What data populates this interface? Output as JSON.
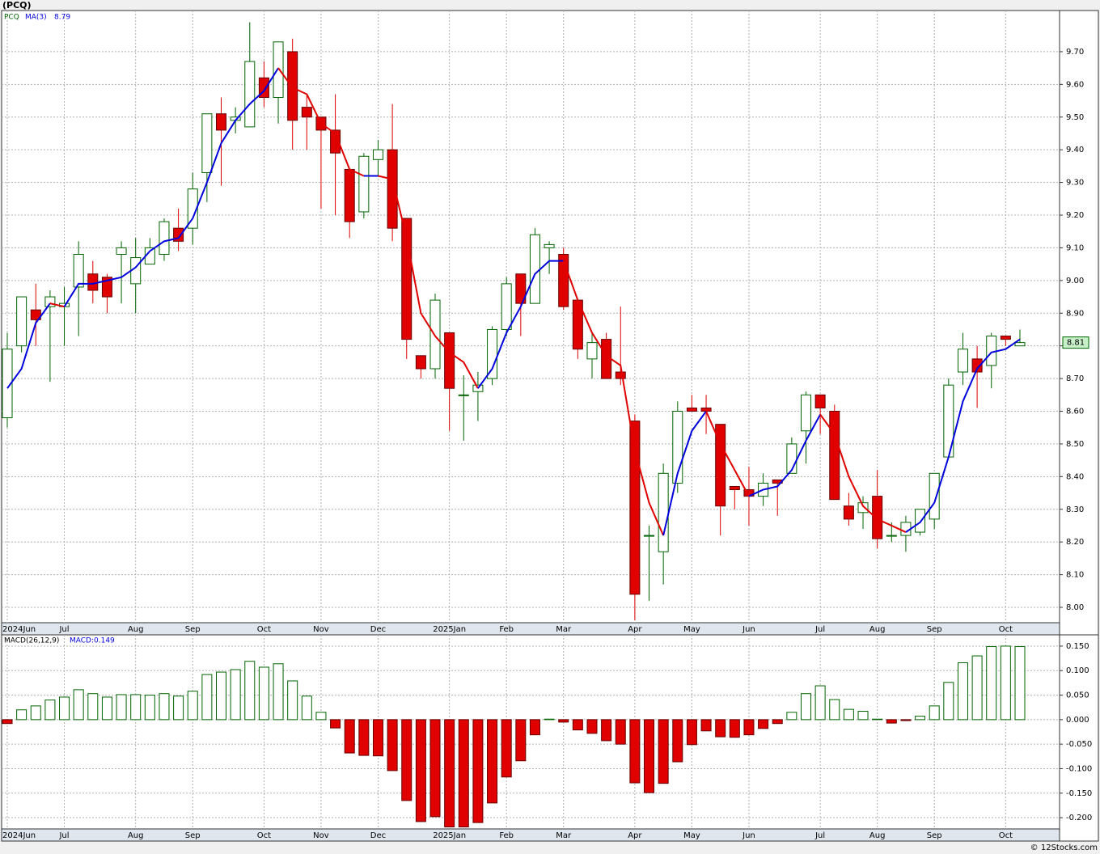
{
  "chart_data": [
    {
      "type": "candlestick",
      "title": "(PCQ)",
      "categories": [
        "2024Jun",
        null,
        null,
        null,
        "Jul",
        null,
        null,
        null,
        null,
        "Aug",
        null,
        null,
        null,
        "Sep",
        null,
        null,
        null,
        null,
        "Oct",
        null,
        null,
        null,
        "Nov",
        null,
        null,
        null,
        "Dec",
        null,
        null,
        null,
        null,
        "2025Jan",
        null,
        null,
        null,
        "Feb",
        null,
        null,
        null,
        "Mar",
        null,
        null,
        null,
        null,
        "Apr",
        null,
        null,
        null,
        "May",
        null,
        null,
        null,
        "Jun",
        null,
        null,
        null,
        null,
        "Jul",
        null,
        null,
        null,
        "Aug",
        null,
        null,
        null,
        "Sep",
        null,
        null,
        null,
        null,
        "Oct",
        null
      ],
      "series": [
        {
          "name": "PCQ",
          "up_color": "#006400",
          "down_color": "#e00000",
          "open": [
            8.58,
            8.8,
            8.91,
            8.92,
            8.92,
            8.98,
            9.02,
            9.01,
            9.08,
            8.99,
            9.05,
            9.08,
            9.16,
            9.16,
            9.33,
            9.51,
            9.49,
            9.47,
            9.62,
            9.56,
            9.7,
            9.53,
            9.5,
            9.46,
            9.34,
            9.21,
            9.37,
            9.4,
            9.19,
            8.77,
            8.73,
            8.84,
            8.65,
            8.66,
            8.7,
            8.85,
            9.02,
            8.93,
            9.1,
            9.08,
            8.94,
            8.76,
            8.82,
            8.72,
            8.57,
            8.22,
            8.17,
            8.38,
            8.61,
            8.61,
            8.56,
            8.37,
            8.36,
            8.34,
            8.39,
            8.41,
            8.54,
            8.65,
            8.6,
            8.31,
            8.29,
            8.34,
            8.22,
            8.22,
            8.23,
            8.27,
            8.46,
            8.72,
            8.76,
            8.74,
            8.83,
            8.8
          ],
          "high": [
            8.84,
            8.95,
            8.99,
            8.97,
            8.98,
            9.12,
            9.06,
            9.02,
            9.12,
            9.13,
            9.13,
            9.19,
            9.22,
            9.33,
            9.51,
            9.56,
            9.53,
            9.79,
            9.67,
            9.73,
            9.74,
            9.57,
            9.5,
            9.57,
            9.34,
            9.39,
            9.43,
            9.54,
            9.19,
            8.77,
            8.96,
            8.84,
            8.71,
            8.72,
            8.86,
            9.01,
            9.02,
            9.16,
            9.12,
            9.1,
            8.94,
            8.84,
            8.84,
            8.92,
            8.59,
            8.25,
            8.44,
            8.63,
            8.65,
            8.65,
            8.56,
            8.37,
            8.43,
            8.41,
            8.39,
            8.52,
            8.66,
            8.65,
            8.62,
            8.35,
            8.34,
            8.42,
            8.26,
            8.28,
            8.3,
            8.41,
            8.7,
            8.84,
            8.8,
            8.84,
            8.83,
            8.85
          ],
          "low": [
            8.55,
            8.78,
            8.8,
            8.69,
            8.8,
            8.83,
            8.93,
            8.9,
            8.93,
            8.9,
            9.05,
            9.06,
            9.09,
            9.11,
            9.24,
            9.29,
            9.45,
            9.47,
            9.53,
            9.48,
            9.4,
            9.4,
            9.22,
            9.2,
            9.13,
            9.19,
            9.32,
            9.12,
            8.76,
            8.7,
            8.7,
            8.54,
            8.51,
            8.57,
            8.68,
            8.83,
            8.83,
            8.93,
            9.02,
            8.91,
            8.76,
            8.7,
            8.7,
            8.68,
            7.96,
            8.02,
            8.07,
            8.35,
            8.6,
            8.53,
            8.22,
            8.3,
            8.25,
            8.31,
            8.28,
            8.41,
            8.44,
            8.53,
            8.33,
            8.25,
            8.24,
            8.18,
            8.2,
            8.17,
            8.22,
            8.24,
            8.46,
            8.68,
            8.61,
            8.67,
            8.8,
            8.8
          ],
          "close": [
            8.79,
            8.95,
            8.88,
            8.95,
            8.93,
            9.08,
            8.97,
            8.95,
            9.1,
            9.07,
            9.1,
            9.18,
            9.12,
            9.28,
            9.51,
            9.46,
            9.5,
            9.67,
            9.56,
            9.73,
            9.49,
            9.5,
            9.46,
            9.39,
            9.18,
            9.38,
            9.4,
            9.16,
            8.82,
            8.73,
            8.94,
            8.67,
            8.65,
            8.68,
            8.85,
            8.99,
            8.93,
            9.14,
            9.11,
            8.92,
            8.79,
            8.81,
            8.7,
            8.7,
            8.04,
            8.22,
            8.41,
            8.6,
            8.6,
            8.6,
            8.31,
            8.36,
            8.34,
            8.38,
            8.38,
            8.5,
            8.65,
            8.61,
            8.33,
            8.27,
            8.32,
            8.21,
            8.22,
            8.26,
            8.3,
            8.41,
            8.68,
            8.79,
            8.72,
            8.83,
            8.82,
            8.81
          ],
          "last_price": 8.81,
          "tag_color": "#c8f0c8"
        },
        {
          "name": "MA(3)",
          "current_value": 8.79,
          "up_color": "#0000dd",
          "down_color": "#e00000",
          "values": [
            8.67,
            8.73,
            8.87,
            8.93,
            8.92,
            8.99,
            8.99,
            9.0,
            9.01,
            9.04,
            9.09,
            9.12,
            9.13,
            9.19,
            9.3,
            9.42,
            9.49,
            9.54,
            9.58,
            9.65,
            9.59,
            9.57,
            9.48,
            9.45,
            9.34,
            9.32,
            9.32,
            9.31,
            9.13,
            8.9,
            8.83,
            8.78,
            8.75,
            8.67,
            8.73,
            8.84,
            8.92,
            9.02,
            9.06,
            9.06,
            8.94,
            8.84,
            8.77,
            8.74,
            8.48,
            8.32,
            8.22,
            8.41,
            8.54,
            8.6,
            8.5,
            8.42,
            8.34,
            8.36,
            8.37,
            8.42,
            8.51,
            8.59,
            8.53,
            8.4,
            8.31,
            8.27,
            8.25,
            8.23,
            8.26,
            8.32,
            8.46,
            8.63,
            8.73,
            8.78,
            8.79,
            8.82
          ]
        }
      ],
      "ylim": [
        7.953,
        9.826
      ],
      "yticks": [
        {
          "value": 8.0,
          "label": "8.00"
        },
        {
          "value": 8.1,
          "label": "8.10"
        },
        {
          "value": 8.2,
          "label": "8.20"
        },
        {
          "value": 8.3,
          "label": "8.30"
        },
        {
          "value": 8.4,
          "label": "8.40"
        },
        {
          "value": 8.5,
          "label": "8.50"
        },
        {
          "value": 8.6,
          "label": "8.60"
        },
        {
          "value": 8.7,
          "label": "8.70"
        },
        {
          "value": 8.8,
          "label": "8.80"
        },
        {
          "value": 8.9,
          "label": "8.90"
        },
        {
          "value": 9.0,
          "label": "9.00"
        },
        {
          "value": 9.1,
          "label": "9.10"
        },
        {
          "value": 9.2,
          "label": "9.20"
        },
        {
          "value": 9.3,
          "label": "9.30"
        },
        {
          "value": 9.4,
          "label": "9.40"
        },
        {
          "value": 9.5,
          "label": "9.50"
        },
        {
          "value": 9.6,
          "label": "9.60"
        },
        {
          "value": 9.7,
          "label": "9.70"
        }
      ],
      "grid": true
    },
    {
      "type": "bar",
      "series": [
        {
          "name": "MACD(26,12,9)",
          "value_label": "MACD:0.149",
          "up_color": "#006400",
          "down_color": "#e00000",
          "values": [
            -0.008,
            0.02,
            0.028,
            0.04,
            0.046,
            0.061,
            0.053,
            0.046,
            0.051,
            0.051,
            0.05,
            0.053,
            0.048,
            0.058,
            0.092,
            0.097,
            0.102,
            0.119,
            0.107,
            0.114,
            0.079,
            0.048,
            0.015,
            -0.017,
            -0.068,
            -0.073,
            -0.074,
            -0.104,
            -0.165,
            -0.208,
            -0.198,
            -0.219,
            -0.219,
            -0.21,
            -0.17,
            -0.117,
            -0.084,
            -0.031,
            0.001,
            -0.005,
            -0.021,
            -0.028,
            -0.043,
            -0.05,
            -0.129,
            -0.149,
            -0.13,
            -0.086,
            -0.051,
            -0.023,
            -0.035,
            -0.036,
            -0.031,
            -0.018,
            -0.008,
            0.015,
            0.053,
            0.069,
            0.041,
            0.021,
            0.017,
            0.001,
            -0.007,
            -0.002,
            0.007,
            0.028,
            0.076,
            0.116,
            0.13,
            0.149,
            0.15,
            0.149
          ]
        }
      ],
      "ylim": [
        -0.223,
        0.173
      ],
      "yticks": [
        {
          "value": 0.15,
          "label": "0.150"
        },
        {
          "value": 0.1,
          "label": "0.100"
        },
        {
          "value": 0.05,
          "label": "0.050"
        },
        {
          "value": 0,
          "label": "0.000"
        },
        {
          "value": -0.05,
          "label": "-0.050"
        },
        {
          "value": -0.1,
          "label": "-0.100"
        },
        {
          "value": -0.15,
          "label": "-0.150"
        },
        {
          "value": -0.2,
          "label": "-0.200"
        }
      ],
      "grid": true
    }
  ],
  "footer": "© 12Stocks.com"
}
